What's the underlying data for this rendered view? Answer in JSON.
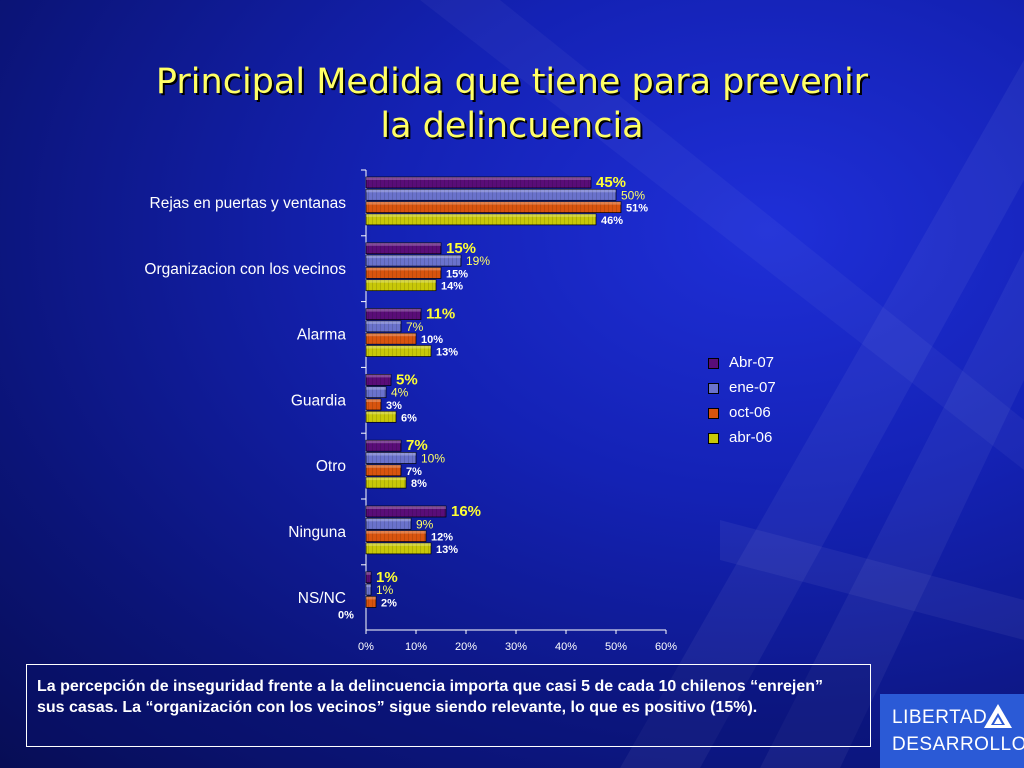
{
  "title": {
    "line1": "Principal Medida que tiene para prevenir",
    "line2": "la delincuencia"
  },
  "chart_data": {
    "type": "bar",
    "orientation": "horizontal",
    "categories": [
      "Rejas en puertas y ventanas",
      "Organizacion con los vecinos",
      "Alarma",
      "Guardia",
      "Otro",
      "Ninguna",
      "NS/NC"
    ],
    "series": [
      {
        "name": "Abr-07",
        "values": [
          45,
          15,
          11,
          5,
          7,
          16,
          1
        ],
        "color": "#5a0d78"
      },
      {
        "name": "ene-07",
        "values": [
          50,
          19,
          7,
          4,
          10,
          9,
          1
        ],
        "color": "#6a72cc"
      },
      {
        "name": "oct-06",
        "values": [
          51,
          15,
          10,
          3,
          7,
          12,
          2
        ],
        "color": "#d9540e"
      },
      {
        "name": "abr-06",
        "values": [
          46,
          14,
          13,
          6,
          8,
          13,
          0
        ],
        "color": "#c8c808"
      }
    ],
    "xaxis_ticks": [
      "0%",
      "10%",
      "20%",
      "30%",
      "40%",
      "50%",
      "60%"
    ],
    "xlim": [
      0,
      60
    ],
    "value_suffix": "%",
    "label_colors": {
      "Abr-07": "#ffff33",
      "ene-07": "#ffff66",
      "oct-06": "#ffffff",
      "abr-06": "#ffffff"
    },
    "legend_position": "right",
    "grid": false
  },
  "legend": {
    "items": [
      {
        "label": "Abr-07",
        "color": "#5a0d78"
      },
      {
        "label": "ene-07",
        "color": "#6a72cc"
      },
      {
        "label": "oct-06",
        "color": "#d9540e"
      },
      {
        "label": "abr-06",
        "color": "#c8c808"
      }
    ]
  },
  "note": {
    "text": "La percepción de inseguridad frente a la delincuencia importa que  casi 5 de cada 10 chilenos “enrejen” sus casas. La “organización con los vecinos” sigue siendo relevante, lo que es positivo (15%)."
  },
  "logo": {
    "line1": "LIBERTAD",
    "line2": "DESARROLLO"
  }
}
